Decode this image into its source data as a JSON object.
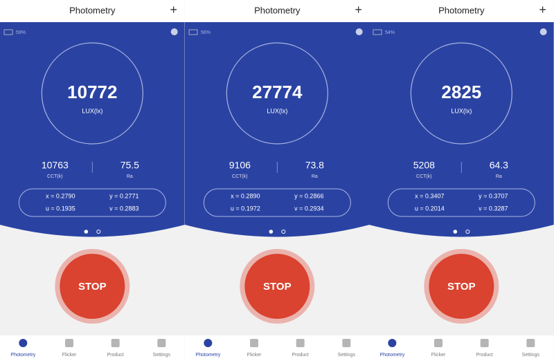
{
  "panels": [
    {
      "title": "Photometry",
      "plus": "+",
      "battery": "59%",
      "lux": "10772",
      "lux_unit": "LUX(lx)",
      "cct": "10763",
      "cct_label": "CCT(k)",
      "ra": "75.5",
      "ra_label": "Ra",
      "x": "x = 0.2790",
      "y": "y = 0.2771",
      "u": "u = 0.1935",
      "v": "v = 0.2883",
      "button": "STOP",
      "nav": [
        "Photometry",
        "Flicker",
        "Product",
        "Settings"
      ]
    },
    {
      "title": "Photometry",
      "plus": "+",
      "battery": "56%",
      "lux": "27774",
      "lux_unit": "LUX(lx)",
      "cct": "9106",
      "cct_label": "CCT(k)",
      "ra": "73.8",
      "ra_label": "Ra",
      "x": "x = 0.2890",
      "y": "y = 0.2866",
      "u": "u = 0.1972",
      "v": "v = 0.2934",
      "button": "STOP",
      "nav": [
        "Photometry",
        "Flicker",
        "Product",
        "Settings"
      ]
    },
    {
      "title": "Photometry",
      "plus": "+",
      "battery": "54%",
      "lux": "2825",
      "lux_unit": "LUX(lx)",
      "cct": "5208",
      "cct_label": "CCT(k)",
      "ra": "64.3",
      "ra_label": "Ra",
      "x": "x = 0.3407",
      "y": "y = 0.3707",
      "u": "u = 0.2014",
      "v": "v = 0.3287",
      "button": "STOP",
      "nav": [
        "Photometry",
        "Flicker",
        "Product",
        "Settings"
      ]
    }
  ]
}
